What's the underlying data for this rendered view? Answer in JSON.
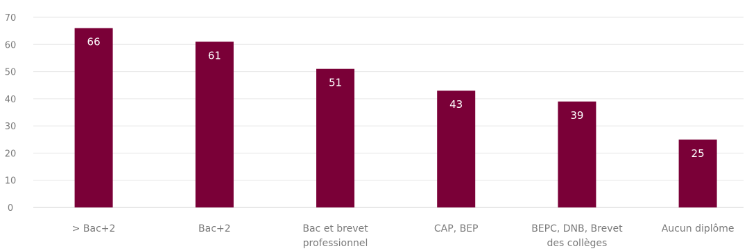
{
  "chart_data": {
    "type": "bar",
    "categories": [
      [
        "> Bac+2"
      ],
      [
        "Bac+2"
      ],
      [
        "Bac et brevet",
        "professionnel"
      ],
      [
        "CAP, BEP"
      ],
      [
        "BEPC, DNB, Brevet",
        "des collèges"
      ],
      [
        "Aucun diplôme"
      ]
    ],
    "values": [
      66,
      61,
      51,
      43,
      39,
      25
    ],
    "data_labels": [
      "66",
      "61",
      "51",
      "43",
      "39",
      "25"
    ],
    "yticks": [
      "0",
      "10",
      "20",
      "30",
      "40",
      "50",
      "60",
      "70"
    ],
    "ylim": [
      0,
      70
    ],
    "grid": true,
    "title": "",
    "xlabel": "",
    "ylabel": "",
    "bar_color": "#7a0037",
    "data_label_color": "#ffffff"
  }
}
